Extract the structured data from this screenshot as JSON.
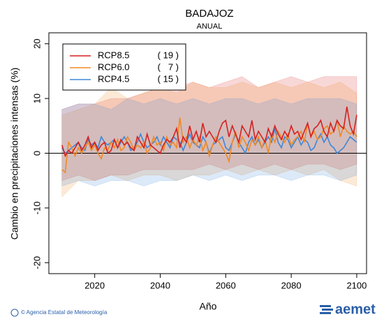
{
  "chart_data": {
    "type": "line",
    "title": "BADAJOZ",
    "subtitle": "ANUAL",
    "y_label": "Cambio en precipitaciones intensas (%)",
    "x_label": "Año",
    "footer": "© Agencia Estatal de Meteorología",
    "logo": "aemet",
    "xlim": [
      2006,
      2103
    ],
    "xticks": [
      2020,
      2040,
      2060,
      2080,
      2100
    ],
    "ylim": [
      -22,
      22
    ],
    "yticks": [
      -20,
      -10,
      0,
      10,
      20
    ],
    "legend": "top-left",
    "x": [
      2010,
      2011,
      2012,
      2013,
      2014,
      2015,
      2016,
      2017,
      2018,
      2019,
      2020,
      2021,
      2022,
      2023,
      2024,
      2025,
      2026,
      2027,
      2028,
      2029,
      2030,
      2031,
      2032,
      2033,
      2034,
      2035,
      2036,
      2037,
      2038,
      2039,
      2040,
      2041,
      2042,
      2043,
      2044,
      2045,
      2046,
      2047,
      2048,
      2049,
      2050,
      2051,
      2052,
      2053,
      2054,
      2055,
      2056,
      2057,
      2058,
      2059,
      2060,
      2061,
      2062,
      2063,
      2064,
      2065,
      2066,
      2067,
      2068,
      2069,
      2070,
      2071,
      2072,
      2073,
      2074,
      2075,
      2076,
      2077,
      2078,
      2079,
      2080,
      2081,
      2082,
      2083,
      2084,
      2085,
      2086,
      2087,
      2088,
      2089,
      2090,
      2091,
      2092,
      2093,
      2094,
      2095,
      2096,
      2097,
      2098,
      2099,
      2100
    ],
    "series": [
      {
        "name": "RCP8.5",
        "count": "( 19 )",
        "color": "#d62020",
        "values": [
          1.5,
          -0.5,
          0.5,
          0,
          1,
          2,
          0.5,
          1.5,
          3,
          1,
          2,
          0.5,
          1.5,
          2,
          0,
          0.5,
          2.5,
          1,
          2.5,
          1.5,
          2,
          1,
          0.5,
          3,
          2,
          1,
          3.5,
          1.5,
          1,
          0.5,
          0,
          1.5,
          2.5,
          2,
          3,
          4.5,
          1,
          3,
          2,
          5,
          2.5,
          4,
          2,
          5.5,
          3,
          4,
          3,
          2,
          4,
          5.5,
          6,
          3,
          5,
          3.5,
          2,
          5,
          4,
          3,
          6,
          2.5,
          4,
          3,
          2,
          4.5,
          3,
          5,
          3.5,
          2.5,
          4,
          3,
          5,
          3.5,
          4,
          2.5,
          4,
          5.5,
          3,
          4.5,
          5,
          6,
          4,
          3,
          5.5,
          4,
          6,
          5,
          4.5,
          8.5,
          5,
          3.5,
          7
        ],
        "band": {
          "x": [
            2010,
            2015,
            2020,
            2025,
            2030,
            2035,
            2040,
            2045,
            2050,
            2055,
            2060,
            2065,
            2070,
            2075,
            2080,
            2085,
            2090,
            2095,
            2100
          ],
          "lower": [
            -5,
            -4,
            -5,
            -4,
            -4,
            -3,
            -3,
            -3,
            -3,
            -2,
            -3,
            -2,
            -3,
            -2,
            -3,
            -2,
            -2,
            -3,
            -2
          ],
          "upper": [
            8,
            9,
            9,
            10,
            10,
            11,
            12,
            12,
            13,
            12,
            13,
            14,
            12,
            13,
            14,
            13,
            14,
            14,
            14
          ]
        }
      },
      {
        "name": "RCP6.0",
        "count": "(   7 )",
        "color": "#f08a24",
        "values": [
          -3,
          -3.5,
          2,
          1,
          -0.5,
          1,
          0,
          1,
          2,
          0.5,
          1.5,
          0,
          -1,
          1,
          0.5,
          2,
          1,
          2.5,
          0.5,
          1,
          3,
          2,
          0.5,
          1.5,
          1,
          2,
          0,
          1,
          3,
          1.5,
          2,
          0.5,
          3,
          1.5,
          2,
          1,
          6.5,
          2,
          3,
          1,
          2.5,
          1.5,
          3,
          0.5,
          2,
          -0.5,
          1.5,
          3,
          2,
          1,
          0,
          -1.5,
          2,
          4,
          1,
          3,
          2,
          0.5,
          2.5,
          1.5,
          3,
          1,
          2.5,
          0,
          3.5,
          2,
          4,
          3,
          2,
          3.5,
          1.5,
          2.5,
          3,
          4,
          2,
          5.5,
          3,
          4,
          2.5,
          3,
          4.5,
          5,
          3.5,
          4,
          6,
          3,
          5,
          4,
          3.5,
          4,
          3
        ],
        "band": {
          "x": [
            2010,
            2015,
            2020,
            2025,
            2030,
            2035,
            2040,
            2045,
            2050,
            2055,
            2060,
            2065,
            2070,
            2075,
            2080,
            2085,
            2090,
            2095,
            2100
          ],
          "lower": [
            -8,
            -5,
            -5,
            -4,
            -5,
            -4,
            -4,
            -5,
            -4,
            -4,
            -3,
            -4,
            -3,
            -4,
            -3,
            -4,
            -3,
            -5,
            -6
          ],
          "upper": [
            7,
            8,
            9,
            12,
            10,
            11,
            12,
            11,
            13,
            12,
            12,
            13,
            12,
            13,
            12,
            13,
            12,
            13,
            11
          ]
        }
      },
      {
        "name": "RCP4.5",
        "count": "( 15 )",
        "color": "#3f87d8",
        "values": [
          1,
          0,
          0.5,
          1,
          1.5,
          2,
          1,
          0.5,
          2.5,
          1.5,
          2,
          1,
          3,
          2,
          1.5,
          2,
          2.5,
          1,
          2,
          3,
          2,
          0.5,
          1,
          2,
          3.5,
          2,
          1,
          1.5,
          2,
          3,
          1.5,
          3,
          2,
          1,
          3,
          2.5,
          2,
          0.5,
          2,
          3.5,
          2,
          1.5,
          1,
          3,
          2,
          0,
          1.5,
          2,
          2.5,
          3,
          1,
          0.5,
          2,
          3.5,
          2,
          1,
          0,
          2,
          3,
          1.5,
          2.5,
          1,
          2,
          3,
          2,
          4.5,
          2,
          1,
          3,
          2.5,
          1,
          2,
          3,
          1.5,
          2.5,
          2,
          0.5,
          1,
          2.5,
          3.5,
          2,
          3,
          1.5,
          1,
          0,
          0.5,
          1,
          2,
          3,
          2.5,
          2
        ],
        "band": {
          "x": [
            2010,
            2015,
            2020,
            2025,
            2030,
            2035,
            2040,
            2045,
            2050,
            2055,
            2060,
            2065,
            2070,
            2075,
            2080,
            2085,
            2090,
            2095,
            2100
          ],
          "lower": [
            -6,
            -5,
            -6,
            -5,
            -5,
            -6,
            -5,
            -5,
            -4,
            -5,
            -4,
            -5,
            -4,
            -4,
            -5,
            -4,
            -4,
            -5,
            -4
          ],
          "upper": [
            8,
            9,
            9,
            8,
            10,
            9,
            10,
            9,
            10,
            9,
            10,
            10,
            9,
            10,
            9,
            10,
            10,
            10,
            9
          ]
        }
      }
    ]
  }
}
